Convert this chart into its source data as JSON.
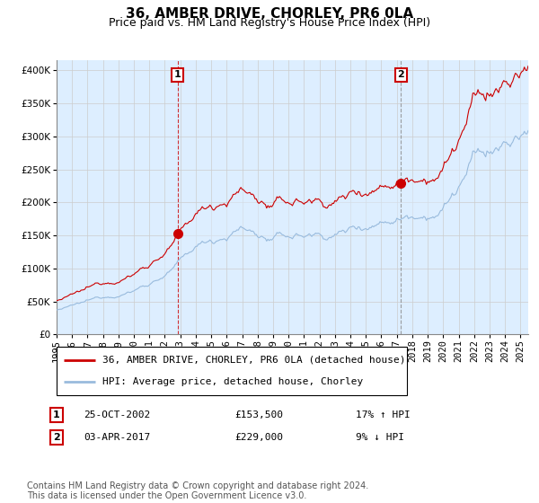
{
  "title": "36, AMBER DRIVE, CHORLEY, PR6 0LA",
  "subtitle": "Price paid vs. HM Land Registry's House Price Index (HPI)",
  "ytick_values": [
    0,
    50000,
    100000,
    150000,
    200000,
    250000,
    300000,
    350000,
    400000
  ],
  "ylim": [
    0,
    415000
  ],
  "xlim_start": 1995.0,
  "xlim_end": 2025.5,
  "transaction1": {
    "date": "25-OCT-2002",
    "price": 153500,
    "x": 2002.82,
    "label": "1",
    "hpi_pct": "17% ↑ HPI"
  },
  "transaction2": {
    "date": "03-APR-2017",
    "price": 229000,
    "x": 2017.26,
    "label": "2",
    "hpi_pct": "9% ↓ HPI"
  },
  "legend_line1": "36, AMBER DRIVE, CHORLEY, PR6 0LA (detached house)",
  "legend_line2": "HPI: Average price, detached house, Chorley",
  "footer": "Contains HM Land Registry data © Crown copyright and database right 2024.\nThis data is licensed under the Open Government Licence v3.0.",
  "property_line_color": "#cc0000",
  "hpi_line_color": "#99bbdd",
  "vline1_color": "#cc0000",
  "vline1_style": "dashed",
  "vline2_color": "#888888",
  "vline2_style": "dashed",
  "background_color": "#ddeeff",
  "grid_color": "#cccccc",
  "title_fontsize": 11,
  "subtitle_fontsize": 9,
  "tick_fontsize": 7.5,
  "legend_fontsize": 8,
  "footer_fontsize": 7
}
